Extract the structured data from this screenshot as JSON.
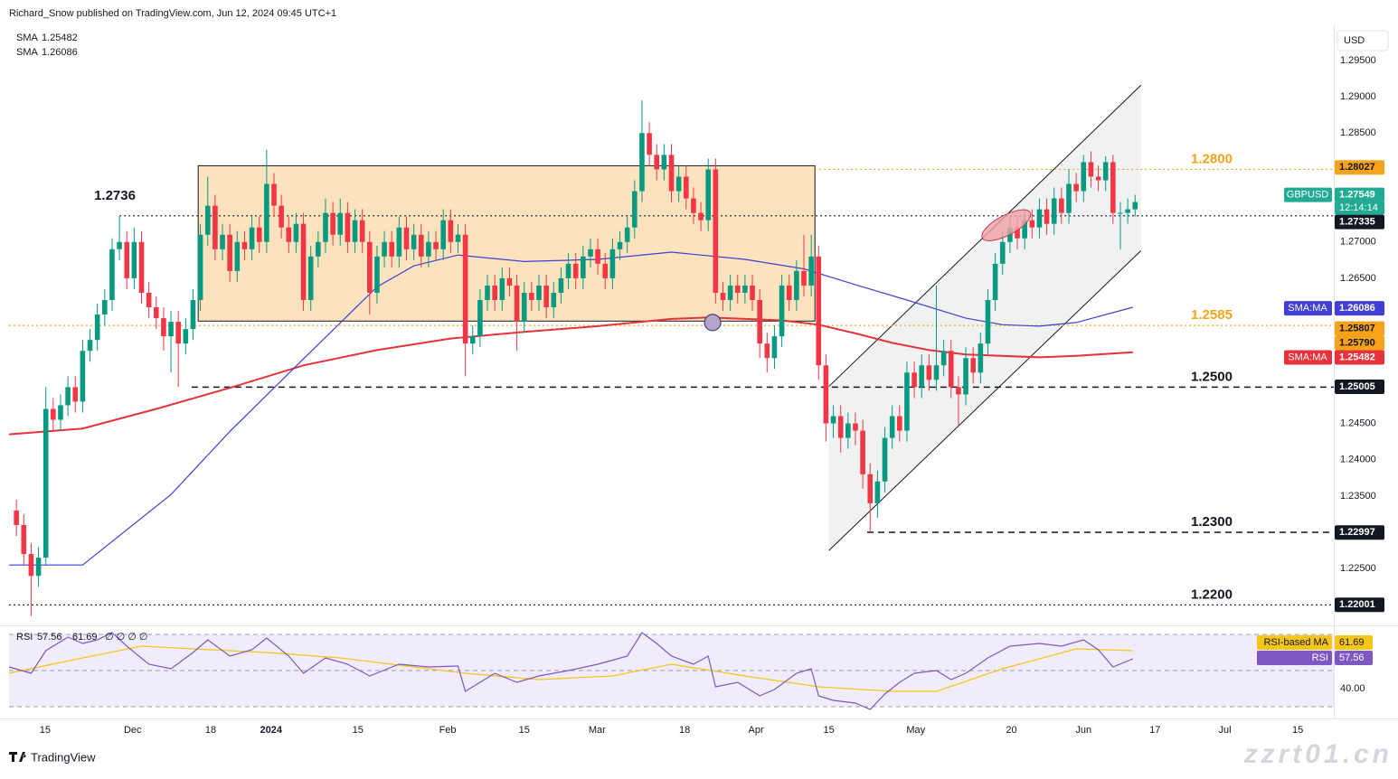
{
  "header": {
    "publisher": "Richard_Snow published on TradingView.com, Jun 12, 2024 09:45 UTC+1",
    "currency": "USD",
    "brand": "TradingView",
    "watermark": "zzrt01.cn"
  },
  "chart_data": {
    "type": "candlestick",
    "up_color": "#089981",
    "down_color": "#f23645",
    "xlim": [
      0,
      180
    ],
    "ylim": [
      1.2178,
      1.2996
    ],
    "xticks": [
      {
        "value": 4.9,
        "label": "15"
      },
      {
        "value": 16.8,
        "label": "Dec"
      },
      {
        "value": 27.4,
        "label": "18"
      },
      {
        "value": 35.6,
        "label": "2024"
      },
      {
        "value": 47.4,
        "label": "15"
      },
      {
        "value": 59.6,
        "label": "Feb"
      },
      {
        "value": 70.0,
        "label": "15"
      },
      {
        "value": 79.9,
        "label": "Mar"
      },
      {
        "value": 91.8,
        "label": "18"
      },
      {
        "value": 101.5,
        "label": "Apr"
      },
      {
        "value": 111.4,
        "label": "15"
      },
      {
        "value": 123.2,
        "label": "May"
      },
      {
        "value": 136.2,
        "label": "20"
      },
      {
        "value": 146.0,
        "label": "Jun"
      },
      {
        "value": 155.7,
        "label": "17"
      },
      {
        "value": 165.2,
        "label": "Jul"
      },
      {
        "value": 175.1,
        "label": "15"
      }
    ],
    "yticks": [
      {
        "value": 1.295,
        "label": "1.29500"
      },
      {
        "value": 1.29,
        "label": "1.29000"
      },
      {
        "value": 1.285,
        "label": "1.28500"
      },
      {
        "value": 1.27,
        "label": "1.27000"
      },
      {
        "value": 1.265,
        "label": "1.26500"
      },
      {
        "value": 1.245,
        "label": "1.24500"
      },
      {
        "value": 1.24,
        "label": "1.24000"
      },
      {
        "value": 1.235,
        "label": "1.23500"
      },
      {
        "value": 1.225,
        "label": "1.22500"
      }
    ],
    "x": [
      1,
      2,
      3,
      4,
      5,
      6,
      7,
      8,
      9,
      10,
      11,
      12,
      13,
      14,
      15,
      16,
      17,
      18,
      19,
      20,
      21,
      22,
      23,
      24,
      25,
      26,
      27,
      28,
      29,
      30,
      31,
      32,
      33,
      34,
      35,
      36,
      37,
      38,
      39,
      40,
      41,
      42,
      43,
      44,
      45,
      46,
      47,
      48,
      49,
      50,
      51,
      52,
      53,
      54,
      55,
      56,
      57,
      58,
      59,
      60,
      61,
      62,
      63,
      64,
      65,
      66,
      67,
      68,
      69,
      70,
      71,
      72,
      73,
      74,
      75,
      76,
      77,
      78,
      79,
      80,
      81,
      82,
      83,
      84,
      85,
      86,
      87,
      88,
      89,
      90,
      91,
      92,
      93,
      94,
      95,
      96,
      97,
      98,
      99,
      100,
      101,
      102,
      103,
      104,
      105,
      106,
      107,
      108,
      109,
      110,
      111,
      112,
      113,
      114,
      115,
      116,
      117,
      118,
      119,
      120,
      121,
      122,
      123,
      124,
      125,
      126,
      127,
      128,
      129,
      130,
      131,
      132,
      133,
      134,
      135,
      136,
      137,
      138,
      139,
      140,
      141,
      142,
      143,
      144,
      145,
      146,
      147,
      148,
      149,
      150,
      151,
      152,
      153
    ],
    "open": [
      1.233,
      1.231,
      1.227,
      1.224,
      1.2265,
      1.247,
      1.2455,
      1.2475,
      1.25,
      1.248,
      1.255,
      1.2565,
      1.26,
      1.262,
      1.269,
      1.27,
      1.265,
      1.27,
      1.263,
      1.261,
      1.2595,
      1.257,
      1.259,
      1.256,
      1.258,
      1.262,
      1.271,
      1.275,
      1.269,
      1.271,
      1.266,
      1.27,
      1.269,
      1.272,
      1.27,
      1.278,
      1.275,
      1.272,
      1.27,
      1.2725,
      1.262,
      1.268,
      1.27,
      1.274,
      1.271,
      1.274,
      1.27,
      1.273,
      1.27,
      1.263,
      1.268,
      1.27,
      1.268,
      1.272,
      1.269,
      1.271,
      1.268,
      1.27,
      1.269,
      1.273,
      1.27,
      1.271,
      1.256,
      1.257,
      1.262,
      1.264,
      1.262,
      1.265,
      1.264,
      1.259,
      1.263,
      1.262,
      1.264,
      1.261,
      1.263,
      1.265,
      1.267,
      1.265,
      1.268,
      1.269,
      1.267,
      1.265,
      1.269,
      1.27,
      1.272,
      1.277,
      1.285,
      1.282,
      1.28,
      1.282,
      1.277,
      1.279,
      1.276,
      1.274,
      1.273,
      1.28,
      1.263,
      1.262,
      1.264,
      1.263,
      1.264,
      1.262,
      1.256,
      1.254,
      1.257,
      1.264,
      1.262,
      1.266,
      1.264,
      1.268,
      1.253,
      1.245,
      1.246,
      1.243,
      1.245,
      1.244,
      1.238,
      1.234,
      1.237,
      1.243,
      1.246,
      1.244,
      1.252,
      1.25,
      1.253,
      1.251,
      1.253,
      1.255,
      1.25,
      1.249,
      1.254,
      1.252,
      1.256,
      1.262,
      1.267,
      1.27,
      1.272,
      1.2705,
      1.273,
      1.272,
      1.2745,
      1.2725,
      1.276,
      1.274,
      1.278,
      1.277,
      1.281,
      1.279,
      1.2785,
      1.281,
      1.274,
      1.274,
      1.2745
    ],
    "high": [
      1.2345,
      1.2325,
      1.2285,
      1.228,
      1.25,
      1.2485,
      1.249,
      1.2515,
      1.2515,
      1.2565,
      1.258,
      1.2615,
      1.2635,
      1.2705,
      1.2736,
      1.2715,
      1.272,
      1.2715,
      1.2645,
      1.2625,
      1.261,
      1.2605,
      1.2605,
      1.2595,
      1.2635,
      1.2725,
      1.279,
      1.2765,
      1.2725,
      1.2725,
      1.2715,
      1.2715,
      1.2735,
      1.2735,
      1.2827,
      1.2795,
      1.2765,
      1.2735,
      1.274,
      1.274,
      1.2695,
      1.2715,
      1.276,
      1.2755,
      1.276,
      1.2755,
      1.2745,
      1.2745,
      1.2715,
      1.2695,
      1.2715,
      1.2715,
      1.2735,
      1.2735,
      1.2725,
      1.2725,
      1.2715,
      1.2715,
      1.2745,
      1.2745,
      1.2725,
      1.2725,
      1.2585,
      1.2635,
      1.2655,
      1.2655,
      1.2665,
      1.2665,
      1.2655,
      1.2645,
      1.2645,
      1.2655,
      1.2655,
      1.2645,
      1.2665,
      1.2685,
      1.2685,
      1.2695,
      1.2705,
      1.2705,
      1.2685,
      1.2705,
      1.2715,
      1.2735,
      1.2785,
      1.2895,
      1.2865,
      1.2835,
      1.2835,
      1.2835,
      1.2805,
      1.2805,
      1.2775,
      1.2755,
      1.2815,
      1.2815,
      1.2645,
      1.2655,
      1.2655,
      1.2655,
      1.2655,
      1.2635,
      1.2575,
      1.2585,
      1.2655,
      1.2655,
      1.2675,
      1.271,
      1.271,
      1.2695,
      1.2545,
      1.2475,
      1.2475,
      1.2465,
      1.2465,
      1.2455,
      1.2395,
      1.2385,
      1.2445,
      1.2475,
      1.2475,
      1.2535,
      1.2535,
      1.2545,
      1.2545,
      1.264,
      1.2565,
      1.2565,
      1.2515,
      1.2555,
      1.2555,
      1.2575,
      1.2635,
      1.2685,
      1.2715,
      1.2735,
      1.2735,
      1.2745,
      1.2745,
      1.276,
      1.276,
      1.2775,
      1.2775,
      1.28,
      1.2795,
      1.282,
      1.2825,
      1.2805,
      1.2818,
      1.282,
      1.2755,
      1.276,
      1.2765
    ],
    "low": [
      1.2295,
      1.2255,
      1.2185,
      1.2225,
      1.2255,
      1.244,
      1.244,
      1.246,
      1.2465,
      1.2465,
      1.2535,
      1.255,
      1.2585,
      1.2605,
      1.2675,
      1.2635,
      1.2635,
      1.2615,
      1.2595,
      1.258,
      1.255,
      1.252,
      1.25,
      1.2545,
      1.2565,
      1.2605,
      1.2695,
      1.2675,
      1.2675,
      1.2645,
      1.2645,
      1.2675,
      1.2675,
      1.2685,
      1.2685,
      1.2735,
      1.2705,
      1.2685,
      1.2685,
      1.2605,
      1.2605,
      1.2665,
      1.2685,
      1.2695,
      1.2695,
      1.2685,
      1.2685,
      1.2685,
      1.26,
      1.2615,
      1.2665,
      1.2665,
      1.2665,
      1.2675,
      1.2675,
      1.2665,
      1.2665,
      1.2675,
      1.2675,
      1.2685,
      1.2685,
      1.2515,
      1.2545,
      1.2555,
      1.2605,
      1.2605,
      1.2605,
      1.2625,
      1.255,
      1.2575,
      1.2605,
      1.2605,
      1.2595,
      1.2595,
      1.2615,
      1.2635,
      1.2635,
      1.2635,
      1.2665,
      1.2655,
      1.2635,
      1.2635,
      1.2675,
      1.2685,
      1.2705,
      1.2755,
      1.2805,
      1.2785,
      1.2785,
      1.2755,
      1.2755,
      1.2745,
      1.2725,
      1.2715,
      1.2715,
      1.2615,
      1.2605,
      1.2605,
      1.2615,
      1.2615,
      1.2605,
      1.254,
      1.252,
      1.2525,
      1.2555,
      1.2605,
      1.2605,
      1.2625,
      1.2625,
      1.251,
      1.2425,
      1.243,
      1.241,
      1.2415,
      1.242,
      1.236,
      1.23,
      1.232,
      1.2355,
      1.2415,
      1.2425,
      1.2425,
      1.2485,
      1.2485,
      1.2495,
      1.2495,
      1.2515,
      1.2485,
      1.2445,
      1.2475,
      1.2505,
      1.2505,
      1.2545,
      1.2605,
      1.2655,
      1.2685,
      1.269,
      1.269,
      1.2705,
      1.2705,
      1.271,
      1.271,
      1.2725,
      1.2725,
      1.2755,
      1.2755,
      1.2775,
      1.277,
      1.277,
      1.2725,
      1.269,
      1.2725,
      1.2735
    ],
    "close": [
      1.231,
      1.227,
      1.224,
      1.2265,
      1.247,
      1.2455,
      1.2475,
      1.25,
      1.248,
      1.255,
      1.2565,
      1.26,
      1.262,
      1.269,
      1.27,
      1.265,
      1.27,
      1.263,
      1.261,
      1.2595,
      1.257,
      1.259,
      1.256,
      1.258,
      1.262,
      1.271,
      1.275,
      1.269,
      1.271,
      1.266,
      1.27,
      1.269,
      1.272,
      1.27,
      1.278,
      1.275,
      1.272,
      1.27,
      1.2725,
      1.262,
      1.268,
      1.27,
      1.274,
      1.271,
      1.274,
      1.27,
      1.273,
      1.27,
      1.263,
      1.268,
      1.27,
      1.268,
      1.272,
      1.269,
      1.271,
      1.268,
      1.27,
      1.269,
      1.273,
      1.27,
      1.271,
      1.256,
      1.257,
      1.262,
      1.264,
      1.262,
      1.265,
      1.264,
      1.259,
      1.263,
      1.262,
      1.264,
      1.261,
      1.263,
      1.265,
      1.267,
      1.265,
      1.268,
      1.269,
      1.267,
      1.265,
      1.269,
      1.27,
      1.272,
      1.277,
      1.285,
      1.282,
      1.28,
      1.282,
      1.277,
      1.279,
      1.276,
      1.274,
      1.273,
      1.28,
      1.263,
      1.262,
      1.264,
      1.263,
      1.264,
      1.262,
      1.256,
      1.254,
      1.257,
      1.264,
      1.262,
      1.266,
      1.264,
      1.268,
      1.253,
      1.245,
      1.246,
      1.243,
      1.245,
      1.244,
      1.238,
      1.234,
      1.237,
      1.243,
      1.246,
      1.244,
      1.252,
      1.25,
      1.253,
      1.251,
      1.253,
      1.255,
      1.25,
      1.249,
      1.254,
      1.252,
      1.256,
      1.262,
      1.267,
      1.27,
      1.272,
      1.2705,
      1.273,
      1.272,
      1.2745,
      1.2725,
      1.276,
      1.274,
      1.278,
      1.277,
      1.281,
      1.279,
      1.2785,
      1.281,
      1.274,
      1.274,
      1.2745,
      1.2755
    ],
    "overlays": [
      {
        "name": "SMA",
        "last": 1.25482,
        "color": "#e5323b",
        "x": [
          0,
          10,
          20,
          30,
          40,
          50,
          60,
          70,
          80,
          90,
          95,
          105,
          110,
          115,
          120,
          125,
          130,
          140,
          145,
          152.7
        ],
        "values": [
          1.2435,
          1.2443,
          1.247,
          1.2499,
          1.253,
          1.2551,
          1.2567,
          1.2576,
          1.2584,
          1.2594,
          1.2596,
          1.2592,
          1.2586,
          1.2574,
          1.2561,
          1.2551,
          1.2545,
          1.2541,
          1.2543,
          1.2548
        ]
      },
      {
        "name": "SMA",
        "last": 1.26086,
        "color": "#3f3fd6",
        "x": [
          0,
          10,
          22,
          30,
          40,
          50,
          55,
          61,
          70,
          80,
          90,
          100,
          108,
          115,
          122,
          130,
          135,
          140,
          145,
          152.7
        ],
        "values": [
          1.2255,
          1.2255,
          1.2352,
          1.2439,
          1.2539,
          1.2638,
          1.2667,
          1.2682,
          1.2673,
          1.2676,
          1.2686,
          1.2676,
          1.2663,
          1.2641,
          1.262,
          1.2595,
          1.2586,
          1.2584,
          1.2589,
          1.261
        ]
      }
    ],
    "box": {
      "x": [
        25.7,
        109.5
      ],
      "y": [
        1.2591,
        1.2805
      ],
      "color": "#fde3bd"
    },
    "channel": {
      "upper": [
        [
          111.4,
          1.2501
        ],
        [
          153.8,
          1.2916
        ]
      ],
      "lower": [
        [
          111.4,
          1.2275
        ],
        [
          153.8,
          1.2688
        ]
      ],
      "color": "#eef0f0"
    },
    "ellipse": {
      "x": 135.5,
      "y": 1.2723,
      "color": "#f0a1a8"
    },
    "circle": {
      "x": 95.6,
      "y": 1.2589,
      "color": "#b3a6c9"
    },
    "levels": [
      {
        "label": "1.2736",
        "value": 1.2736,
        "from_x": 15,
        "style": "dotted",
        "color": "#131722",
        "side": "left"
      },
      {
        "label": "1.2800",
        "value": 1.28,
        "from_x": 109.5,
        "style": "dotted",
        "color": "#f7a21b",
        "side": "right"
      },
      {
        "label": "1.2585",
        "value": 1.2585,
        "from_x": 0,
        "style": "dotted",
        "color": "#f7a21b",
        "side": "right"
      },
      {
        "label": "1.2500",
        "value": 1.25,
        "from_x": 24.8,
        "style": "dashed",
        "color": "#131722",
        "side": "right"
      },
      {
        "label": "1.2300",
        "value": 1.23,
        "from_x": 116.6,
        "style": "dashed",
        "color": "#131722",
        "side": "right"
      },
      {
        "label": "1.2200",
        "value": 1.22,
        "from_x": 0,
        "style": "dotted",
        "color": "#131722",
        "side": "right"
      }
    ],
    "price_labels": [
      {
        "value": 1.28027,
        "color": "#f7a21b",
        "text_color": "#131722"
      },
      {
        "value": 1.27549,
        "title": "GBPUSD",
        "sub": "12:14:14",
        "color": "#22ab94",
        "text_color": "#ffffff"
      },
      {
        "value": 1.27335,
        "color": "#131722",
        "text_color": "#ffffff"
      },
      {
        "value": 1.26086,
        "title": "SMA:MA",
        "color": "#3f3fd6",
        "text_color": "#ffffff"
      },
      {
        "value": 1.25807,
        "color": "#f7a21b",
        "text_color": "#131722"
      },
      {
        "value": 1.2579,
        "label": "1.25790",
        "color": "#f7a21b",
        "text_color": "#131722"
      },
      {
        "value": 1.25482,
        "title": "SMA:MA",
        "color": "#e5323b",
        "text_color": "#ffffff"
      },
      {
        "value": 1.25005,
        "color": "#131722",
        "text_color": "#ffffff"
      },
      {
        "value": 1.22997,
        "color": "#131722",
        "text_color": "#ffffff"
      },
      {
        "value": 1.22001,
        "color": "#131722",
        "text_color": "#ffffff"
      }
    ],
    "rsi": {
      "name": "RSI",
      "value": 57.56,
      "ma_name": "RSI-based MA",
      "ma_value": 61.69,
      "legend_extra": "∅ ∅ ∅ ∅",
      "color": "#7e57c2",
      "ma_color": "#f5c518",
      "band_color": "#f1ecfb",
      "ylim": [
        25,
        72.5
      ],
      "yticks": [
        {
          "value": 40,
          "label": "40.00"
        }
      ],
      "levels": [
        70,
        50,
        30
      ],
      "x": [
        0,
        3,
        5,
        8,
        10,
        12,
        14,
        16,
        19,
        22,
        25,
        27,
        30,
        33,
        35,
        38,
        40,
        43,
        46,
        49,
        53,
        57,
        61,
        62,
        64,
        66,
        69,
        72,
        76,
        80,
        84,
        86,
        88,
        90,
        93,
        95,
        96,
        99,
        102,
        104,
        107,
        109,
        110,
        112,
        115,
        117,
        119,
        121,
        123,
        126,
        128,
        130,
        133,
        136,
        140,
        143,
        146,
        148,
        150,
        152.7
      ],
      "values": [
        52,
        48.5,
        61,
        68.5,
        65,
        67,
        71,
        63.5,
        53.5,
        51,
        60,
        67,
        58,
        61.5,
        68,
        58,
        48.5,
        57,
        53.5,
        47,
        53.5,
        52,
        52.5,
        38.5,
        43.5,
        48.5,
        43.5,
        47,
        50,
        53.5,
        58,
        71,
        65,
        58,
        53.5,
        58,
        41,
        43.5,
        36,
        39.5,
        48.5,
        51,
        36,
        33.5,
        32,
        28.5,
        37,
        43.5,
        48.5,
        50,
        45,
        48.5,
        57,
        63.5,
        65,
        63.5,
        67,
        61.5,
        52,
        56.5
      ],
      "ma_x": [
        0,
        10,
        18,
        25,
        35,
        45,
        55,
        62,
        72,
        82,
        90,
        100,
        110,
        120,
        126,
        135,
        145,
        152.7
      ],
      "ma_values": [
        48.5,
        57,
        63.5,
        62,
        60,
        57,
        52,
        48.5,
        45,
        47,
        53.5,
        47,
        41,
        38.5,
        38.5,
        51,
        62,
        61
      ]
    }
  }
}
